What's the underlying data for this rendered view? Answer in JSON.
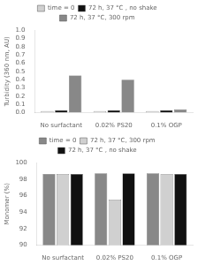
{
  "chart_data": [
    {
      "type": "bar",
      "categories": [
        "No surfactant",
        "0.02% PS20",
        "0.1% OGP"
      ],
      "series": [
        {
          "name": "time = 0",
          "color": "#d0d0d0",
          "values": [
            0.02,
            0.02,
            0.02
          ]
        },
        {
          "name": "72 h, 37 °C , no shake",
          "color": "#111111",
          "values": [
            0.03,
            0.03,
            0.03
          ]
        },
        {
          "name": "72 h, 37 °C, 300 rpm",
          "color": "#888888",
          "values": [
            0.45,
            0.4,
            0.04
          ]
        }
      ],
      "ylabel": "Turbidity (360 nm, AU)",
      "ylim": [
        0.0,
        1.0
      ],
      "yticks": [
        {
          "value": 0,
          "label": "0.0"
        },
        0.1,
        0.2,
        0.3,
        0.4,
        0.5,
        0.6,
        0.7,
        0.8,
        0.9,
        {
          "value": 1,
          "label": "1.0"
        }
      ],
      "grid": false,
      "legend": "top"
    },
    {
      "type": "bar",
      "categories": [
        "No surfactant",
        "0.02% PS20",
        "0.1% OGP"
      ],
      "series": [
        {
          "name": "time = 0",
          "color": "#888888",
          "values": [
            98.6,
            98.7,
            98.7
          ]
        },
        {
          "name": "72 h, 37 °C, 300 rpm",
          "color": "#d0d0d0",
          "values": [
            98.6,
            95.5,
            98.6
          ]
        },
        {
          "name": "72 h, 37 °C , no shake",
          "color": "#111111",
          "values": [
            98.6,
            98.7,
            98.6
          ]
        }
      ],
      "ylabel": "Monomer (%)",
      "ylim": [
        90,
        100
      ],
      "yticks": [
        90,
        92,
        94,
        96,
        98,
        100
      ],
      "grid": false,
      "legend": "top"
    }
  ]
}
